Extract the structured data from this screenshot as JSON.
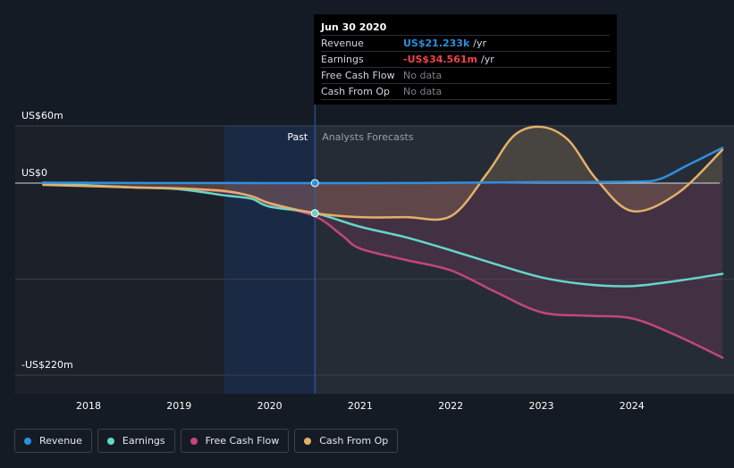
{
  "chart_data": {
    "type": "line",
    "x_ticks": [
      "2018",
      "2019",
      "2020",
      "2021",
      "2022",
      "2023",
      "2024"
    ],
    "y_labels": [
      "US$60m",
      "US$0",
      "-US$220m"
    ],
    "y_ticks": [
      60,
      0,
      -220
    ],
    "ylim": [
      -220,
      60
    ],
    "periods": {
      "past_label": "Past",
      "forecast_label": "Analysts Forecasts"
    },
    "divider_x": 2020.5,
    "highlight_range": [
      2019.5,
      2020.5
    ],
    "series": [
      {
        "name": "Revenue",
        "color": "#2e8fe0",
        "fill": false,
        "points": [
          [
            2017.5,
            0.5
          ],
          [
            2018.0,
            0.3
          ],
          [
            2019.0,
            0.1
          ],
          [
            2020.0,
            0.05
          ],
          [
            2020.5,
            0.02
          ],
          [
            2021.0,
            0.05
          ],
          [
            2022.0,
            0.3
          ],
          [
            2023.0,
            1.0
          ],
          [
            2024.0,
            1.5
          ],
          [
            2024.3,
            4
          ],
          [
            2024.6,
            18
          ],
          [
            2025.0,
            37
          ]
        ]
      },
      {
        "name": "Earnings",
        "color": "#64d6c9",
        "fill": false,
        "points": [
          [
            2017.5,
            0.5
          ],
          [
            2018.0,
            -2.5
          ],
          [
            2018.5,
            -5
          ],
          [
            2019.0,
            -7
          ],
          [
            2019.5,
            -14
          ],
          [
            2019.8,
            -18
          ],
          [
            2020.0,
            -27
          ],
          [
            2020.5,
            -34.5
          ],
          [
            2021.0,
            -50
          ],
          [
            2021.5,
            -62
          ],
          [
            2022.0,
            -77
          ],
          [
            2022.5,
            -93
          ],
          [
            2023.0,
            -108
          ],
          [
            2023.5,
            -116
          ],
          [
            2024.0,
            -118
          ],
          [
            2024.5,
            -112
          ],
          [
            2025.0,
            -104
          ]
        ]
      },
      {
        "name": "Free Cash Flow",
        "color": "#c3457e",
        "fill": true,
        "points": [
          [
            2017.5,
            -1.5
          ],
          [
            2018.0,
            -2.5
          ],
          [
            2018.5,
            -5
          ],
          [
            2019.0,
            -6
          ],
          [
            2019.5,
            -10
          ],
          [
            2019.8,
            -15
          ],
          [
            2020.0,
            -24
          ],
          [
            2020.5,
            -38
          ],
          [
            2020.8,
            -60
          ],
          [
            2021.0,
            -75
          ],
          [
            2021.5,
            -88
          ],
          [
            2022.0,
            -100
          ],
          [
            2022.5,
            -125
          ],
          [
            2023.0,
            -148
          ],
          [
            2023.5,
            -152
          ],
          [
            2024.0,
            -155
          ],
          [
            2024.5,
            -175
          ],
          [
            2025.0,
            -200
          ]
        ]
      },
      {
        "name": "Cash From Op",
        "color": "#e3b06a",
        "fill": true,
        "points": [
          [
            2017.5,
            -2
          ],
          [
            2018.0,
            -3.5
          ],
          [
            2018.5,
            -5
          ],
          [
            2019.0,
            -6
          ],
          [
            2019.5,
            -9
          ],
          [
            2019.8,
            -15
          ],
          [
            2020.0,
            -23
          ],
          [
            2020.5,
            -34.5
          ],
          [
            2021.0,
            -39
          ],
          [
            2021.5,
            -39
          ],
          [
            2022.0,
            -38
          ],
          [
            2022.4,
            10
          ],
          [
            2022.7,
            50
          ],
          [
            2023.0,
            59
          ],
          [
            2023.3,
            45
          ],
          [
            2023.6,
            5
          ],
          [
            2024.0,
            -32
          ],
          [
            2024.5,
            -12
          ],
          [
            2025.0,
            35
          ]
        ]
      }
    ],
    "markers": [
      {
        "series": "Revenue",
        "x": 2020.5,
        "y": 0.02
      },
      {
        "series": "Earnings",
        "x": 2020.5,
        "y": -34.5
      }
    ]
  },
  "tooltip": {
    "date": "Jun 30 2020",
    "rows": [
      {
        "label": "Revenue",
        "value": "US$21.233k",
        "unit": "/yr",
        "color": "#2e8fe0"
      },
      {
        "label": "Earnings",
        "value": "-US$34.561m",
        "unit": "/yr",
        "color": "#f0434b"
      },
      {
        "label": "Free Cash Flow",
        "value": "No data",
        "unit": "",
        "color": "#7b8088"
      },
      {
        "label": "Cash From Op",
        "value": "No data",
        "unit": "",
        "color": "#7b8088"
      }
    ]
  },
  "legend": [
    {
      "label": "Revenue",
      "color": "#2e8fe0"
    },
    {
      "label": "Earnings",
      "color": "#64d6c9"
    },
    {
      "label": "Free Cash Flow",
      "color": "#c3457e"
    },
    {
      "label": "Cash From Op",
      "color": "#e3b06a"
    }
  ],
  "colors": {
    "background": "#151b24",
    "plot_background": "#262c36",
    "past_shade": "#1c2129",
    "highlight": "#1a2a44",
    "divider": "#2b63b3",
    "gridline": "#3a3f47",
    "zero_line": "#d8dbe0"
  }
}
